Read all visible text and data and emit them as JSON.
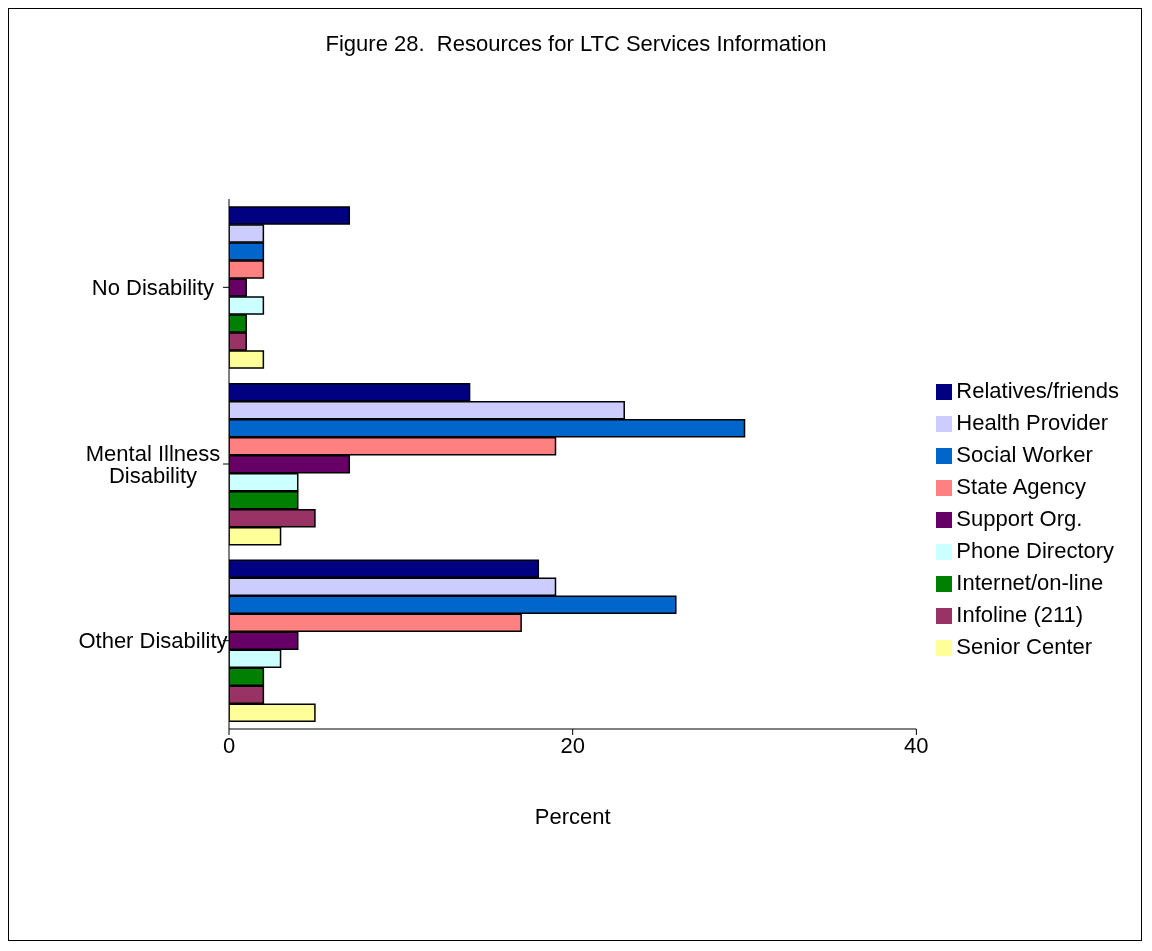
{
  "chart_data": {
    "type": "bar",
    "orientation": "horizontal",
    "title": "Figure 28.  Resources for LTC Services Information",
    "xlabel": "Percent",
    "categories": [
      "No Disability",
      "Mental Illness Disability",
      "Other Disability"
    ],
    "series": [
      {
        "name": "Relatives/friends",
        "color": "#000080",
        "values": [
          7,
          14,
          18
        ]
      },
      {
        "name": "Health Provider",
        "color": "#ccccff",
        "values": [
          2,
          23,
          19
        ]
      },
      {
        "name": "Social Worker",
        "color": "#0066cc",
        "values": [
          2,
          30,
          26
        ]
      },
      {
        "name": "State Agency",
        "color": "#ff8080",
        "values": [
          2,
          19,
          17
        ]
      },
      {
        "name": "Support Org.",
        "color": "#660066",
        "values": [
          1,
          7,
          4
        ]
      },
      {
        "name": "Phone Directory",
        "color": "#ccffff",
        "values": [
          2,
          4,
          3
        ]
      },
      {
        "name": "Internet/on-line",
        "color": "#008000",
        "values": [
          1,
          4,
          2
        ]
      },
      {
        "name": "Infoline (211)",
        "color": "#993366",
        "values": [
          1,
          5,
          2
        ]
      },
      {
        "name": "Senior Center",
        "color": "#ffff99",
        "values": [
          2,
          3,
          5
        ]
      }
    ],
    "xlim": [
      0,
      40
    ],
    "xticks": [
      0,
      20,
      40
    ],
    "grid": false,
    "legend": "right"
  }
}
